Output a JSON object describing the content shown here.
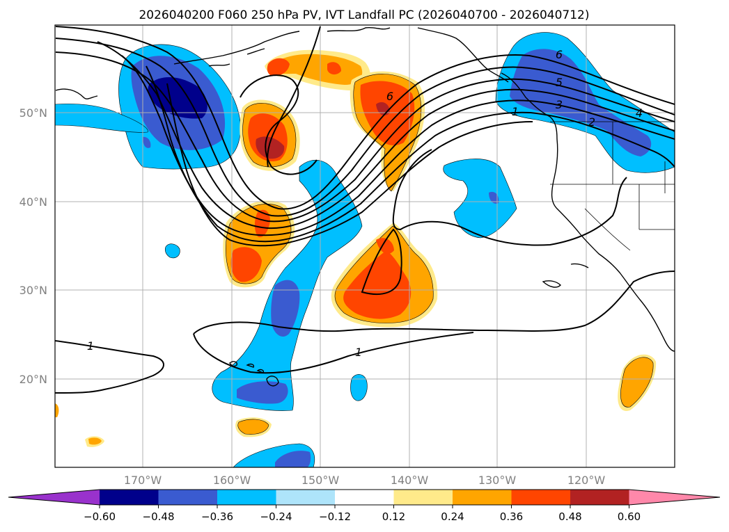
{
  "title": "2026040200 F060 250 hPa PV, IVT Landfall PC (2026040700 - 2026040712)",
  "map": {
    "lat_labels": [
      "50°N",
      "40°N",
      "30°N",
      "20°N"
    ],
    "lon_labels": [
      "170°W",
      "160°W",
      "150°W",
      "140°W",
      "130°W",
      "120°W"
    ]
  },
  "contour_labels": [
    "6",
    "6",
    "5",
    "3",
    "2",
    "4",
    "1",
    "1",
    "1"
  ],
  "colorbar": {
    "ticks": [
      "−0.60",
      "−0.48",
      "−0.36",
      "−0.24",
      "−0.12",
      "0.12",
      "0.24",
      "0.36",
      "0.48",
      "0.60"
    ],
    "colors": [
      "#9932cc",
      "#00008b",
      "#3a5bd0",
      "#00bfff",
      "#aee4fa",
      "#ffffff",
      "#ffea8a",
      "#ffa500",
      "#ff4500",
      "#b22222",
      "#ff88aa"
    ]
  }
}
